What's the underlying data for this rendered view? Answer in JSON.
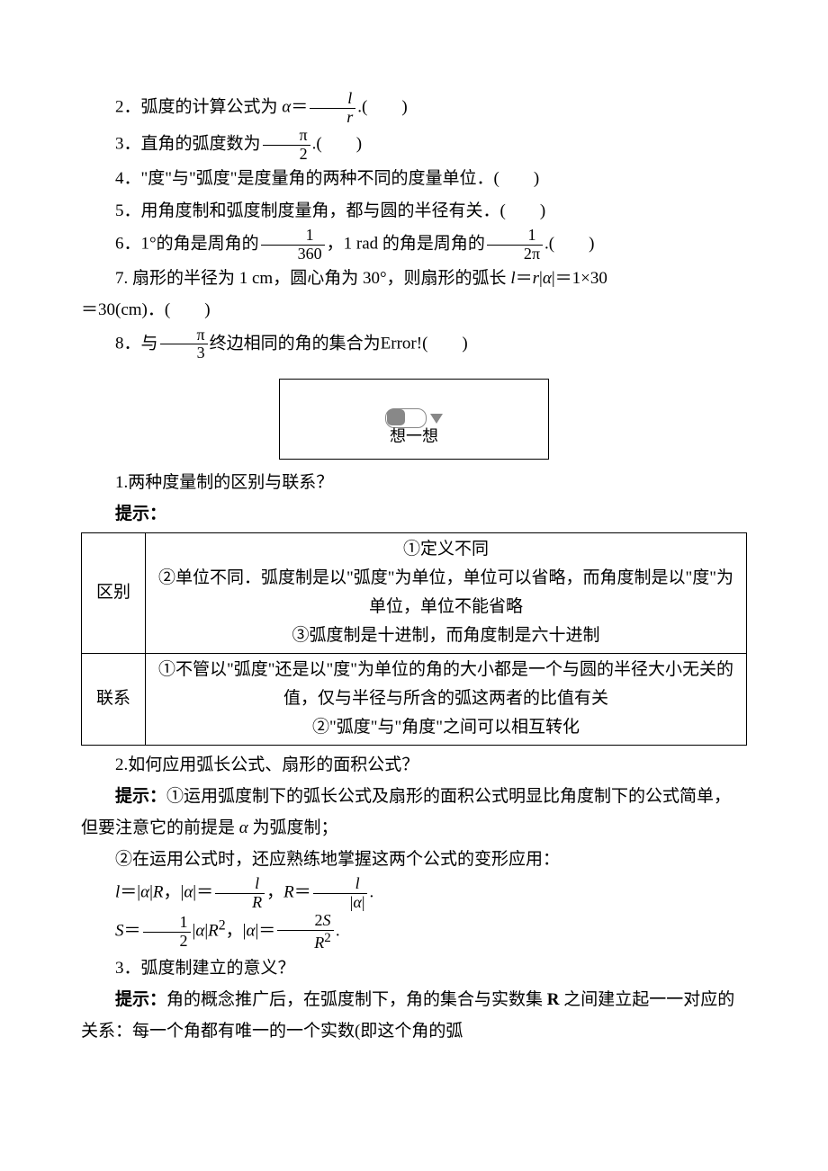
{
  "items": {
    "q2_a": "2．弧度的计算公式为 ",
    "q2_alpha": "α",
    "q2_b": "＝",
    "q2_num": "l",
    "q2_den": "r",
    "q2_c": ".(　　)",
    "q3_a": "3．直角的弧度数为",
    "q3_num": "π",
    "q3_den": "2",
    "q3_b": ".(　　)",
    "q4": "4．\"度\"与\"弧度\"是度量角的两种不同的度量单位．(　　)",
    "q5": "5．用角度制和弧度制度量角，都与圆的半径有关．(　　)",
    "q6_a": "6．1°的角是周角的",
    "q6_num1": "1",
    "q6_den1": "360",
    "q6_b": "，1 rad 的角是周角的",
    "q6_num2": "1",
    "q6_den2": "2π",
    "q6_c": ".(　　)",
    "q7_a": "7. 扇形的半径为 1 cm，圆心角为 30°，则扇形的弧长 ",
    "q7_l": "l",
    "q7_b": "＝",
    "q7_r": "r",
    "q7_c": "|",
    "q7_alpha": "α",
    "q7_d": "|＝1×30",
    "q7_line2": "＝30(cm)．(　　)",
    "q8_a": "8．与",
    "q8_num": "π",
    "q8_den": "3",
    "q8_b": "终边相同的角的集合为",
    "q8_err": "Error!",
    "q8_c": "(　　)"
  },
  "think_label": "想一想",
  "section1_title": "1.两种度量制的区别与联系？",
  "hint_label": "提示：",
  "table": {
    "row1_label": "区别",
    "row1_l1": "①定义不同",
    "row1_l2": "②单位不同．弧度制是以\"弧度\"为单位，单位可以省略，而角度制是以\"度\"为单位，单位不能省略",
    "row1_l3": "③弧度制是十进制，而角度制是六十进制",
    "row2_label": "联系",
    "row2_l1": "①不管以\"弧度\"还是以\"度\"为单位的角的大小都是一个与圆的半径大小无关的值，仅与半径与所含的弧这两者的比值有关",
    "row2_l2": "②\"弧度\"与\"角度\"之间可以相互转化"
  },
  "section2_title": "2.如何应用弧长公式、扇形的面积公式？",
  "hint2_a": "①运用弧度制下的弧长公式及扇形的面积公式明显比角度制下的公式简单，但要注意它的前提是 ",
  "hint2_alpha": "α",
  "hint2_b": " 为弧度制；",
  "hint2_line2": "②在运用公式时，还应熟练地掌握这两个公式的变形应用：",
  "formulas": {
    "f1_l": "l",
    "f1_a": "＝|",
    "f1_alpha1": "α",
    "f1_b": "|",
    "f1_R1": "R",
    "f1_c": "，|",
    "f1_alpha2": "α",
    "f1_d": "|＝",
    "f1_num1": "l",
    "f1_den1": "R",
    "f1_e": "，",
    "f1_R2": "R",
    "f1_f": "＝",
    "f1_num2": "l",
    "f1_den2_a": "|",
    "f1_den2_alpha": "α",
    "f1_den2_b": "|",
    "f1_g": ".",
    "f2_S": "S",
    "f2_a": "＝",
    "f2_num1": "1",
    "f2_den1": "2",
    "f2_b": "|",
    "f2_alpha1": "α",
    "f2_c": "|",
    "f2_R": "R",
    "f2_sup": "2",
    "f2_d": "，|",
    "f2_alpha2": "α",
    "f2_e": "|＝",
    "f2_num2_a": "2",
    "f2_num2_S": "S",
    "f2_den2_R": "R",
    "f2_den2_sup": "2",
    "f2_f": "."
  },
  "section3_title": "3．弧度制建立的意义？",
  "hint3_a": "角的概念推广后，在弧度制下，角的集合与实数集 ",
  "hint3_R": "R",
  "hint3_b": " 之间建立起一一对应的关系：每一个角都有唯一的一个实数(即这个角的弧",
  "colors": {
    "text": "#000000",
    "background": "#ffffff",
    "border": "#000000",
    "toggle": "#888888"
  }
}
